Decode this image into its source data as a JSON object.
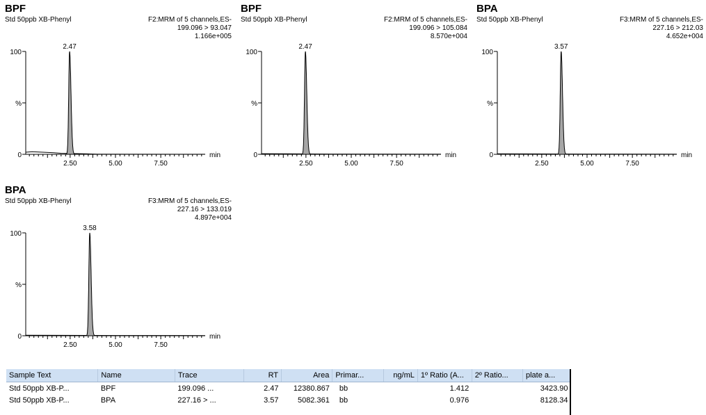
{
  "chart_data": [
    {
      "type": "line",
      "title": "BPF",
      "sample": "Std 50ppb XB-Phenyl",
      "channel": "F2:MRM of 5 channels,ES-",
      "transition": "199.096 > 93.047",
      "intensity": "1.166e+005",
      "peak_label": "2.47",
      "peak_rt": 2.47,
      "peak_width": 0.09,
      "xlabel": "min",
      "x_ticks": [
        "2.50",
        "5.00",
        "7.50"
      ],
      "y_ticks": [
        "0",
        "%",
        "100"
      ],
      "xlim": [
        0.05,
        9.95
      ],
      "ylim": [
        0,
        100
      ],
      "baseline": [
        [
          0.05,
          2.0
        ],
        [
          0.4,
          2.6
        ],
        [
          0.8,
          2.2
        ],
        [
          1.2,
          1.8
        ],
        [
          1.6,
          1.5
        ],
        [
          2.0,
          1.0
        ],
        [
          4.0,
          0.2
        ],
        [
          9.95,
          0.1
        ]
      ]
    },
    {
      "type": "line",
      "title": "BPF",
      "sample": "Std 50ppb XB-Phenyl",
      "channel": "F2:MRM of 5 channels,ES-",
      "transition": "199.096 > 105.084",
      "intensity": "8.570e+004",
      "peak_label": "2.47",
      "peak_rt": 2.47,
      "peak_width": 0.09,
      "xlabel": "min",
      "x_ticks": [
        "2.50",
        "5.00",
        "7.50"
      ],
      "y_ticks": [
        "0",
        "%",
        "100"
      ],
      "xlim": [
        0.05,
        9.95
      ],
      "ylim": [
        0,
        100
      ],
      "baseline": [
        [
          0.05,
          0.6
        ],
        [
          1.5,
          0.5
        ],
        [
          4.0,
          0.3
        ],
        [
          9.95,
          0.2
        ]
      ]
    },
    {
      "type": "line",
      "title": "BPA",
      "sample": "Std 50ppb XB-Phenyl",
      "channel": "F3:MRM of 5 channels,ES-",
      "transition": "227.16 > 212.03",
      "intensity": "4.652e+004",
      "peak_label": "3.57",
      "peak_rt": 3.57,
      "peak_width": 0.09,
      "xlabel": "min",
      "x_ticks": [
        "2.50",
        "5.00",
        "7.50"
      ],
      "y_ticks": [
        "0",
        "%",
        "100"
      ],
      "xlim": [
        0.05,
        9.95
      ],
      "ylim": [
        0,
        100
      ],
      "baseline": [
        [
          0.05,
          0.5
        ],
        [
          2.0,
          0.4
        ],
        [
          5.0,
          0.3
        ],
        [
          9.95,
          0.2
        ]
      ]
    },
    {
      "type": "line",
      "title": "BPA",
      "sample": "Std 50ppb XB-Phenyl",
      "channel": "F3:MRM of 5 channels,ES-",
      "transition": "227.16 > 133.019",
      "intensity": "4.897e+004",
      "peak_label": "3.58",
      "peak_rt": 3.58,
      "peak_width": 0.09,
      "xlabel": "min",
      "x_ticks": [
        "2.50",
        "5.00",
        "7.50"
      ],
      "y_ticks": [
        "0",
        "%",
        "100"
      ],
      "xlim": [
        0.05,
        9.95
      ],
      "ylim": [
        0,
        100
      ],
      "baseline": [
        [
          0.05,
          0.5
        ],
        [
          2.0,
          0.4
        ],
        [
          5.0,
          0.3
        ],
        [
          9.95,
          0.2
        ]
      ]
    }
  ],
  "table": {
    "headers": [
      "Sample Text",
      "Name",
      "Trace",
      "RT",
      "Area",
      "Primar...",
      "ng/mL",
      "1º Ratio (A...",
      "2º Ratio...",
      "plate a..."
    ],
    "rows": [
      [
        "Std 50ppb XB-P...",
        "BPF",
        "199.096 ...",
        "2.47",
        "12380.867",
        "bb",
        "",
        "1.412",
        "",
        "3423.90"
      ],
      [
        "Std 50ppb XB-P...",
        "BPA",
        "227.16 > ...",
        "3.57",
        "5082.361",
        "bb",
        "",
        "0.976",
        "",
        "8128.34"
      ]
    ]
  },
  "colors": {
    "peak_fill": "#a7a7a7",
    "trace": "#000000",
    "header_bg": "#cfe0f3"
  }
}
